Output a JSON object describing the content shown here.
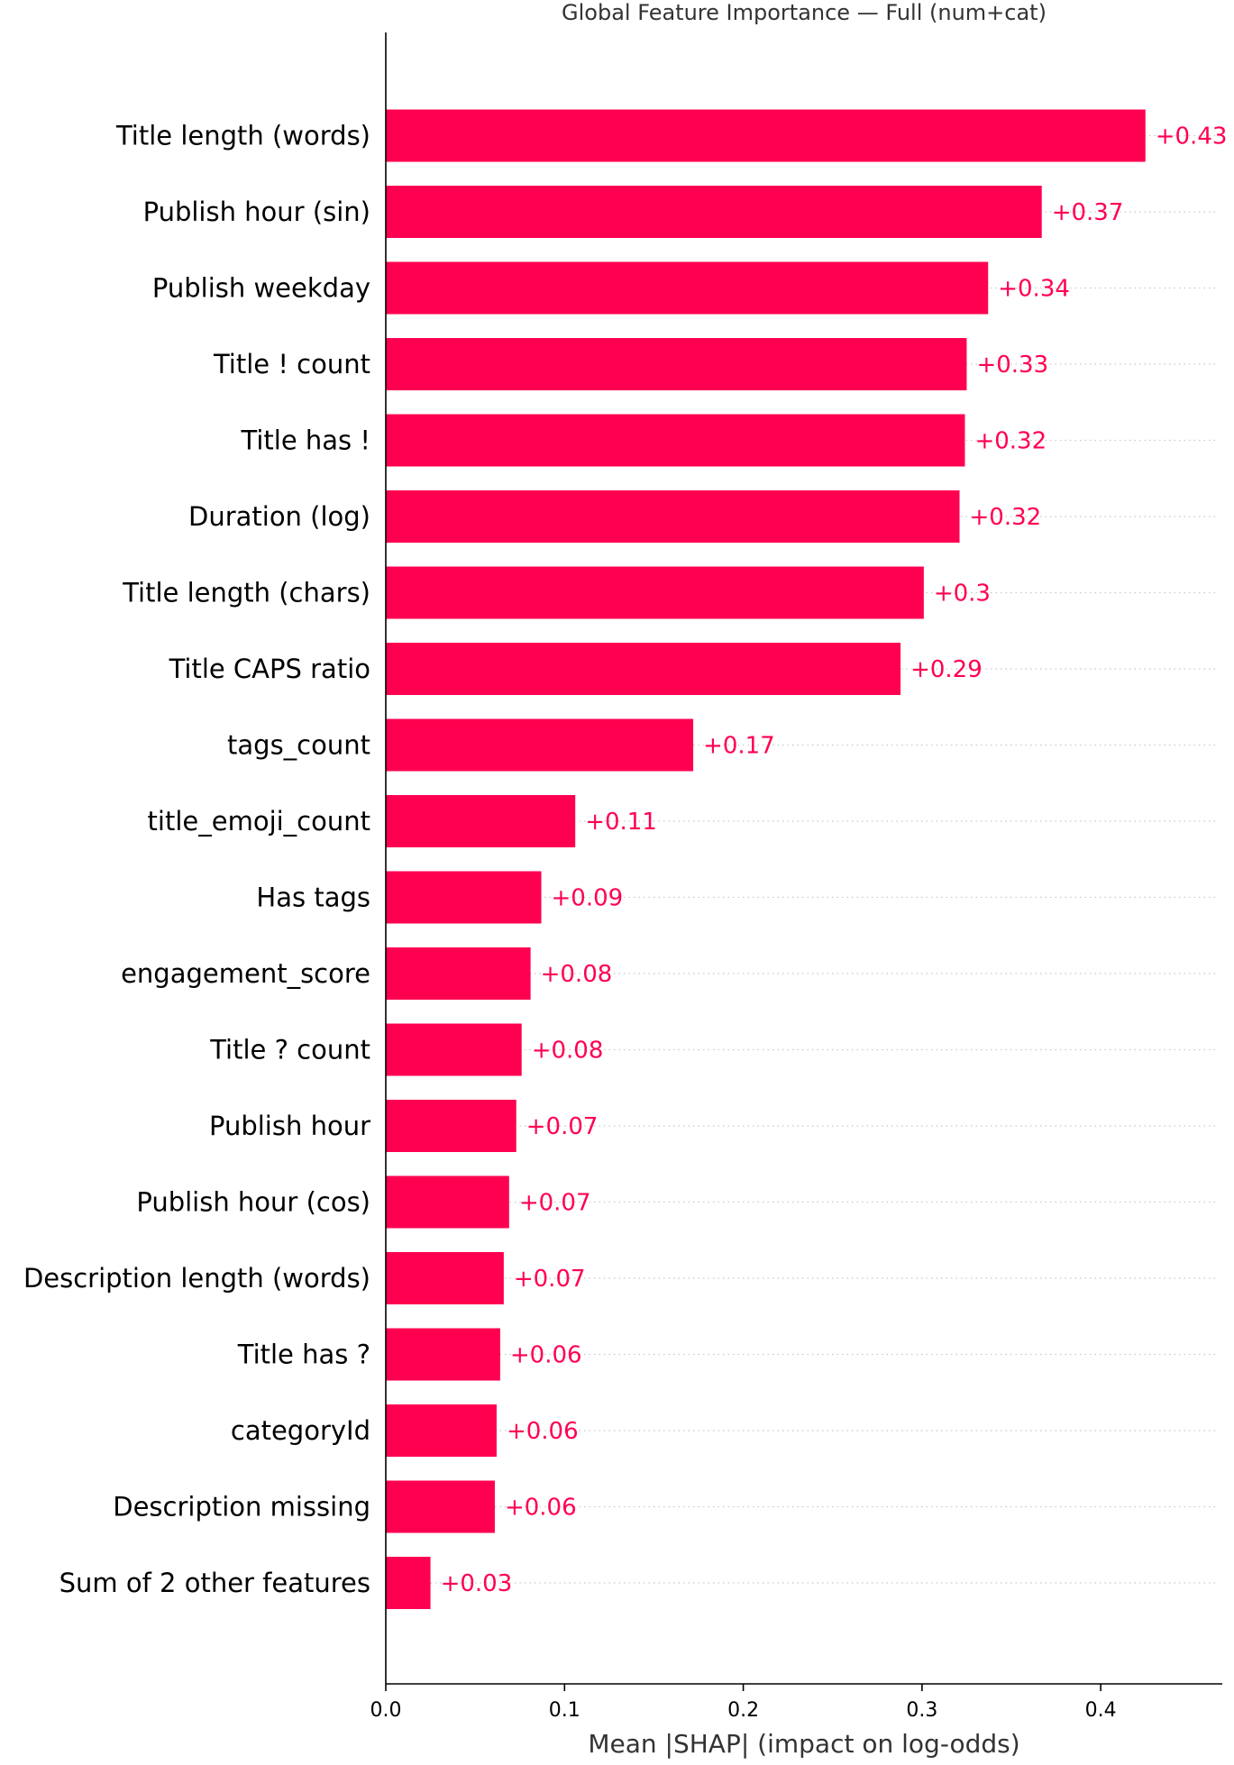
{
  "chart_data": {
    "type": "bar",
    "orientation": "horizontal",
    "title": "Global Feature Importance — Full (num+cat)",
    "xlabel": "Mean |SHAP| (impact on log-odds)",
    "ylabel": "",
    "xlim": [
      0,
      0.468
    ],
    "xticks": [
      0.0,
      0.1,
      0.2,
      0.3,
      0.4
    ],
    "xtick_labels": [
      "0.0",
      "0.1",
      "0.2",
      "0.3",
      "0.4"
    ],
    "grid": false,
    "legend": "none",
    "bar_color": "#ff0051",
    "label_color": "#ff0051",
    "categories": [
      "Title length (words)",
      "Publish hour (sin)",
      "Publish weekday",
      "Title ! count",
      "Title has !",
      "Duration (log)",
      "Title length (chars)",
      "Title CAPS ratio",
      "tags_count",
      "title_emoji_count",
      "Has tags",
      "engagement_score",
      "Title ? count",
      "Publish hour",
      "Publish hour (cos)",
      "Description length (words)",
      "Title has ?",
      "categoryId",
      "Description missing",
      "Sum of 2 other features"
    ],
    "values": [
      0.425,
      0.367,
      0.337,
      0.325,
      0.324,
      0.321,
      0.301,
      0.288,
      0.172,
      0.106,
      0.087,
      0.081,
      0.076,
      0.073,
      0.069,
      0.066,
      0.064,
      0.062,
      0.061,
      0.025
    ],
    "value_labels": [
      "+0.43",
      "+0.37",
      "+0.34",
      "+0.33",
      "+0.32",
      "+0.32",
      "+0.3",
      "+0.29",
      "+0.17",
      "+0.11",
      "+0.09",
      "+0.08",
      "+0.08",
      "+0.07",
      "+0.07",
      "+0.07",
      "+0.06",
      "+0.06",
      "+0.06",
      "+0.03"
    ]
  }
}
